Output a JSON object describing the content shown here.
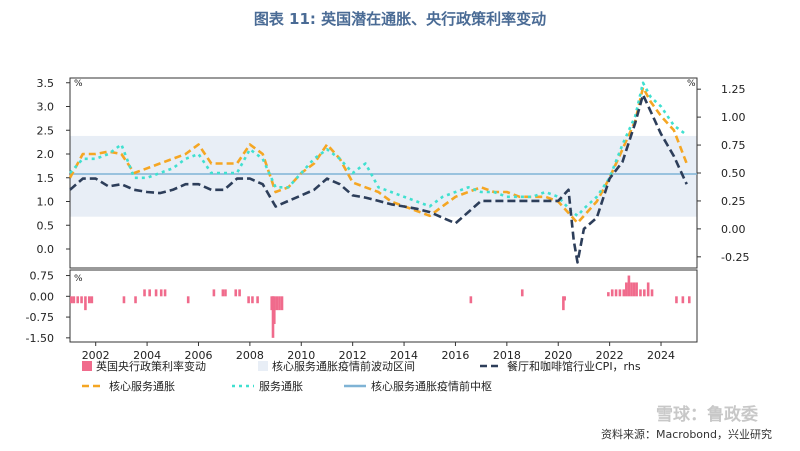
{
  "title": "图表 11: 英国潜在通胀、央行政策利率变动",
  "source": "资料来源：Macrobond，兴业研究",
  "watermark": "雪球：鲁政委",
  "chart_data": {
    "type": "line",
    "top": {
      "ylabel_left": "%",
      "ylabel_right": "%",
      "ylim_left": [
        -0.4,
        3.6
      ],
      "yticks_left": [
        0.0,
        0.5,
        1.0,
        1.5,
        2.0,
        2.5,
        3.0,
        3.5
      ],
      "ylim_right": [
        -0.35,
        1.35
      ],
      "yticks_right": [
        -0.25,
        0.0,
        0.25,
        0.5,
        0.75,
        1.0,
        1.25
      ],
      "band": {
        "name": "核心服务通胀疫情前波动区间",
        "low": 0.68,
        "high": 2.38
      },
      "median": {
        "name": "核心服务通胀疫情前中枢",
        "value": 1.58
      },
      "series": [
        {
          "name": "核心服务通胀",
          "axis": "left",
          "color": "#f5a623",
          "x": [
            2001.0,
            2001.5,
            2002.0,
            2002.5,
            2003.0,
            2003.5,
            2004.0,
            2004.5,
            2005.0,
            2005.5,
            2006.0,
            2006.5,
            2007.0,
            2007.5,
            2008.0,
            2008.5,
            2009.0,
            2009.5,
            2010.0,
            2010.5,
            2011.0,
            2011.5,
            2012.0,
            2012.5,
            2013.0,
            2013.5,
            2014.0,
            2014.5,
            2015.0,
            2015.5,
            2016.0,
            2016.5,
            2017.0,
            2017.5,
            2018.0,
            2018.5,
            2019.0,
            2019.5,
            2020.0,
            2020.5,
            2020.75,
            2021.0,
            2021.5,
            2022.0,
            2022.5,
            2023.0,
            2023.3,
            2023.6,
            2024.0,
            2024.5,
            2025.0
          ],
          "values": [
            1.5,
            2.0,
            2.0,
            2.05,
            2.0,
            1.6,
            1.7,
            1.8,
            1.9,
            2.0,
            2.2,
            1.8,
            1.8,
            1.8,
            2.2,
            2.0,
            1.2,
            1.3,
            1.6,
            1.8,
            2.2,
            1.9,
            1.4,
            1.3,
            1.2,
            1.0,
            0.9,
            0.8,
            0.7,
            0.9,
            1.1,
            1.2,
            1.3,
            1.2,
            1.2,
            1.1,
            1.1,
            1.1,
            1.0,
            0.7,
            0.55,
            0.7,
            1.0,
            1.5,
            2.1,
            2.7,
            3.4,
            3.1,
            2.8,
            2.5,
            1.8
          ]
        },
        {
          "name": "服务通胀",
          "axis": "left",
          "color": "#40e0d0",
          "x": [
            2001.0,
            2001.5,
            2002.0,
            2002.5,
            2003.0,
            2003.5,
            2004.0,
            2004.5,
            2005.0,
            2005.5,
            2006.0,
            2006.5,
            2007.0,
            2007.5,
            2008.0,
            2008.5,
            2009.0,
            2009.5,
            2010.0,
            2010.5,
            2011.0,
            2011.5,
            2012.0,
            2012.5,
            2013.0,
            2013.5,
            2014.0,
            2014.5,
            2015.0,
            2015.5,
            2016.0,
            2016.5,
            2017.0,
            2017.5,
            2018.0,
            2018.5,
            2019.0,
            2019.5,
            2020.0,
            2020.5,
            2020.75,
            2021.0,
            2021.5,
            2022.0,
            2022.5,
            2023.0,
            2023.3,
            2023.6,
            2024.0,
            2024.5,
            2025.0
          ],
          "values": [
            1.6,
            1.9,
            1.9,
            2.0,
            2.2,
            1.5,
            1.5,
            1.6,
            1.7,
            1.9,
            2.0,
            1.6,
            1.6,
            1.6,
            2.1,
            1.9,
            1.3,
            1.3,
            1.6,
            1.9,
            2.1,
            1.9,
            1.6,
            1.8,
            1.3,
            1.2,
            1.1,
            1.0,
            0.9,
            1.1,
            1.2,
            1.3,
            1.2,
            1.2,
            1.1,
            1.1,
            1.1,
            1.2,
            1.1,
            0.8,
            0.7,
            0.85,
            1.1,
            1.5,
            2.2,
            2.8,
            3.5,
            3.2,
            3.0,
            2.6,
            2.4
          ]
        },
        {
          "name": "餐厅和咖啡馆行业CPI，rhs",
          "axis": "right",
          "color": "#2d3e5a",
          "x": [
            2001.0,
            2001.5,
            2002.0,
            2002.5,
            2003.0,
            2003.5,
            2004.0,
            2004.5,
            2005.0,
            2005.5,
            2006.0,
            2006.5,
            2007.0,
            2007.5,
            2008.0,
            2008.5,
            2009.0,
            2009.5,
            2010.0,
            2010.5,
            2011.0,
            2011.5,
            2012.0,
            2012.5,
            2013.0,
            2013.5,
            2014.0,
            2014.5,
            2015.0,
            2015.5,
            2016.0,
            2016.5,
            2017.0,
            2017.5,
            2018.0,
            2018.5,
            2019.0,
            2019.5,
            2020.0,
            2020.4,
            2020.6,
            2020.75,
            2021.0,
            2021.5,
            2022.0,
            2022.5,
            2023.0,
            2023.3,
            2023.6,
            2024.0,
            2024.5,
            2025.0
          ],
          "values": [
            0.35,
            0.45,
            0.45,
            0.38,
            0.4,
            0.35,
            0.33,
            0.32,
            0.35,
            0.4,
            0.4,
            0.35,
            0.35,
            0.45,
            0.45,
            0.4,
            0.2,
            0.25,
            0.3,
            0.35,
            0.45,
            0.4,
            0.3,
            0.28,
            0.25,
            0.22,
            0.2,
            0.18,
            0.15,
            0.1,
            0.05,
            0.15,
            0.25,
            0.25,
            0.25,
            0.25,
            0.25,
            0.25,
            0.25,
            0.35,
            -0.1,
            -0.3,
            0.0,
            0.1,
            0.45,
            0.6,
            0.95,
            1.2,
            1.05,
            0.85,
            0.65,
            0.4
          ]
        }
      ]
    },
    "bottom": {
      "name": "英国央行政策利率变动",
      "ylabel_left": "%",
      "ylim": [
        -1.65,
        0.95
      ],
      "yticks": [
        0.75,
        0.0,
        -0.75,
        -1.5
      ],
      "color": "#f06b8c",
      "x": [
        2001.05,
        2001.15,
        2001.3,
        2001.45,
        2001.6,
        2001.75,
        2001.85,
        2003.1,
        2003.55,
        2003.9,
        2004.1,
        2004.35,
        2004.55,
        2004.7,
        2005.6,
        2006.6,
        2006.95,
        2007.05,
        2007.45,
        2007.6,
        2007.95,
        2008.1,
        2008.3,
        2008.85,
        2008.9,
        2008.95,
        2009.05,
        2009.15,
        2009.25,
        2016.6,
        2018.6,
        2020.2,
        2020.25,
        2021.95,
        2022.1,
        2022.25,
        2022.4,
        2022.55,
        2022.65,
        2022.75,
        2022.85,
        2022.95,
        2023.05,
        2023.2,
        2023.35,
        2023.5,
        2023.65,
        2024.6,
        2024.85,
        2025.1
      ],
      "values": [
        -0.25,
        -0.25,
        -0.25,
        -0.25,
        -0.5,
        -0.25,
        -0.25,
        -0.25,
        -0.25,
        0.25,
        0.25,
        0.25,
        0.25,
        0.25,
        -0.25,
        0.25,
        0.25,
        0.25,
        0.25,
        0.25,
        -0.25,
        -0.25,
        -0.25,
        -0.5,
        -1.5,
        -1.0,
        -0.5,
        -0.5,
        -0.5,
        -0.25,
        0.25,
        -0.5,
        -0.15,
        0.15,
        0.25,
        0.25,
        0.25,
        0.25,
        0.5,
        0.75,
        0.5,
        0.5,
        0.5,
        0.25,
        0.25,
        0.5,
        0.25,
        -0.25,
        -0.25,
        -0.25
      ]
    },
    "x_ticks": [
      2002,
      2004,
      2006,
      2008,
      2010,
      2012,
      2014,
      2016,
      2018,
      2020,
      2022,
      2024
    ],
    "xlim": [
      2001.0,
      2025.4
    ],
    "legend": [
      {
        "key": "bars",
        "label": "英国央行政策利率变动"
      },
      {
        "key": "band",
        "label": "核心服务通胀疫情前波动区间"
      },
      {
        "key": "cpi",
        "label": "餐厅和咖啡馆行业CPI，rhs"
      },
      {
        "key": "core",
        "label": "核心服务通胀"
      },
      {
        "key": "services",
        "label": "服务通胀"
      },
      {
        "key": "median",
        "label": "核心服务通胀疫情前中枢"
      }
    ]
  }
}
